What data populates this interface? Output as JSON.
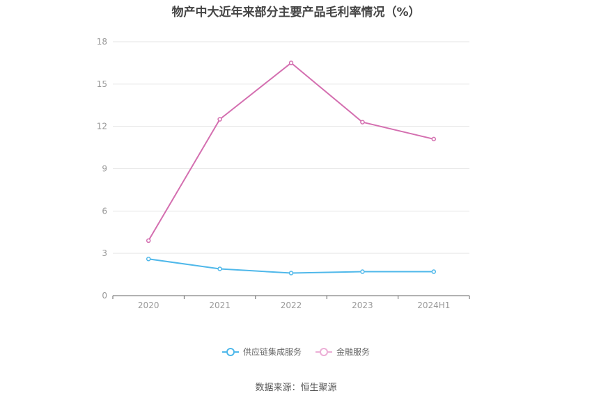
{
  "chart_data": {
    "type": "line",
    "title": "物产中大近年来部分主要产品毛利率情况（%）",
    "categories": [
      "2020",
      "2021",
      "2022",
      "2023",
      "2024H1"
    ],
    "ylim": [
      0,
      18
    ],
    "yticks": [
      "0",
      "3",
      "6",
      "9",
      "12",
      "15",
      "18"
    ],
    "grid": true,
    "legend_position": "bottom",
    "series": [
      {
        "name": "供应链集成服务",
        "color": "#4fb8ea",
        "values": [
          2.6,
          1.9,
          1.6,
          1.7,
          1.7
        ]
      },
      {
        "name": "金融服务",
        "color": "#d46fb0",
        "values": [
          3.9,
          12.5,
          16.5,
          12.3,
          11.1
        ]
      }
    ]
  },
  "source": "数据来源：恒生聚源"
}
